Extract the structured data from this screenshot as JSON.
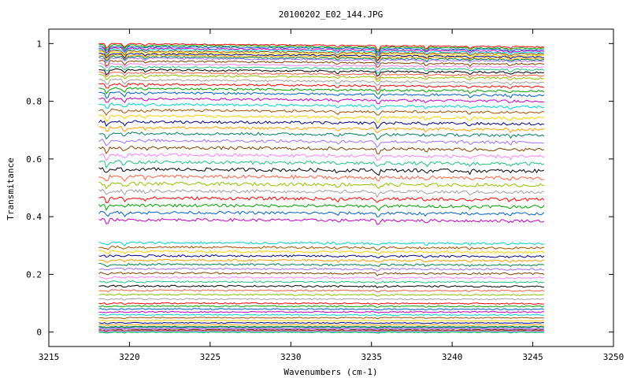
{
  "chart_data": {
    "type": "line",
    "title": "20100202_E02_144.JPG",
    "xlabel": "Wavenumbers (cm-1)",
    "ylabel": "Transmitance",
    "xlim": [
      3215,
      3250
    ],
    "ylim": [
      -0.05,
      1.05
    ],
    "x_ticks": [
      "3215",
      "3220",
      "3225",
      "3230",
      "3235",
      "3240",
      "3245",
      "3250"
    ],
    "y_ticks": [
      "0",
      "0.2",
      "0.4",
      "0.6",
      "0.8",
      "1"
    ],
    "x_range": [
      3218.1,
      3245.7
    ],
    "grid": false,
    "legend": "none",
    "colors": [
      "#ff0000",
      "#00a000",
      "#0060c0",
      "#c000c0",
      "#00d0d0",
      "#a05000",
      "#ffd000",
      "#000080",
      "#ffa000",
      "#008050",
      "#a070ff",
      "#804000",
      "#ff80ff",
      "#20c080",
      "#000000",
      "#ff6040",
      "#90c000",
      "#a0a0a0"
    ],
    "series_levels": [
      1.0,
      0.995,
      0.99,
      0.985,
      0.98,
      0.975,
      0.97,
      0.965,
      0.96,
      0.955,
      0.95,
      0.94,
      0.93,
      0.92,
      0.91,
      0.9,
      0.89,
      0.875,
      0.86,
      0.845,
      0.83,
      0.81,
      0.79,
      0.77,
      0.75,
      0.73,
      0.71,
      0.69,
      0.665,
      0.64,
      0.615,
      0.59,
      0.565,
      0.54,
      0.515,
      0.49,
      0.465,
      0.44,
      0.415,
      0.39,
      0.31,
      0.295,
      0.28,
      0.265,
      0.25,
      0.235,
      0.22,
      0.205,
      0.19,
      0.175,
      0.16,
      0.145,
      0.13,
      0.115,
      0.1,
      0.09,
      0.08,
      0.07,
      0.06,
      0.05,
      0.04,
      0.032,
      0.025,
      0.018,
      0.012,
      0.007,
      0.003,
      0.0
    ]
  }
}
